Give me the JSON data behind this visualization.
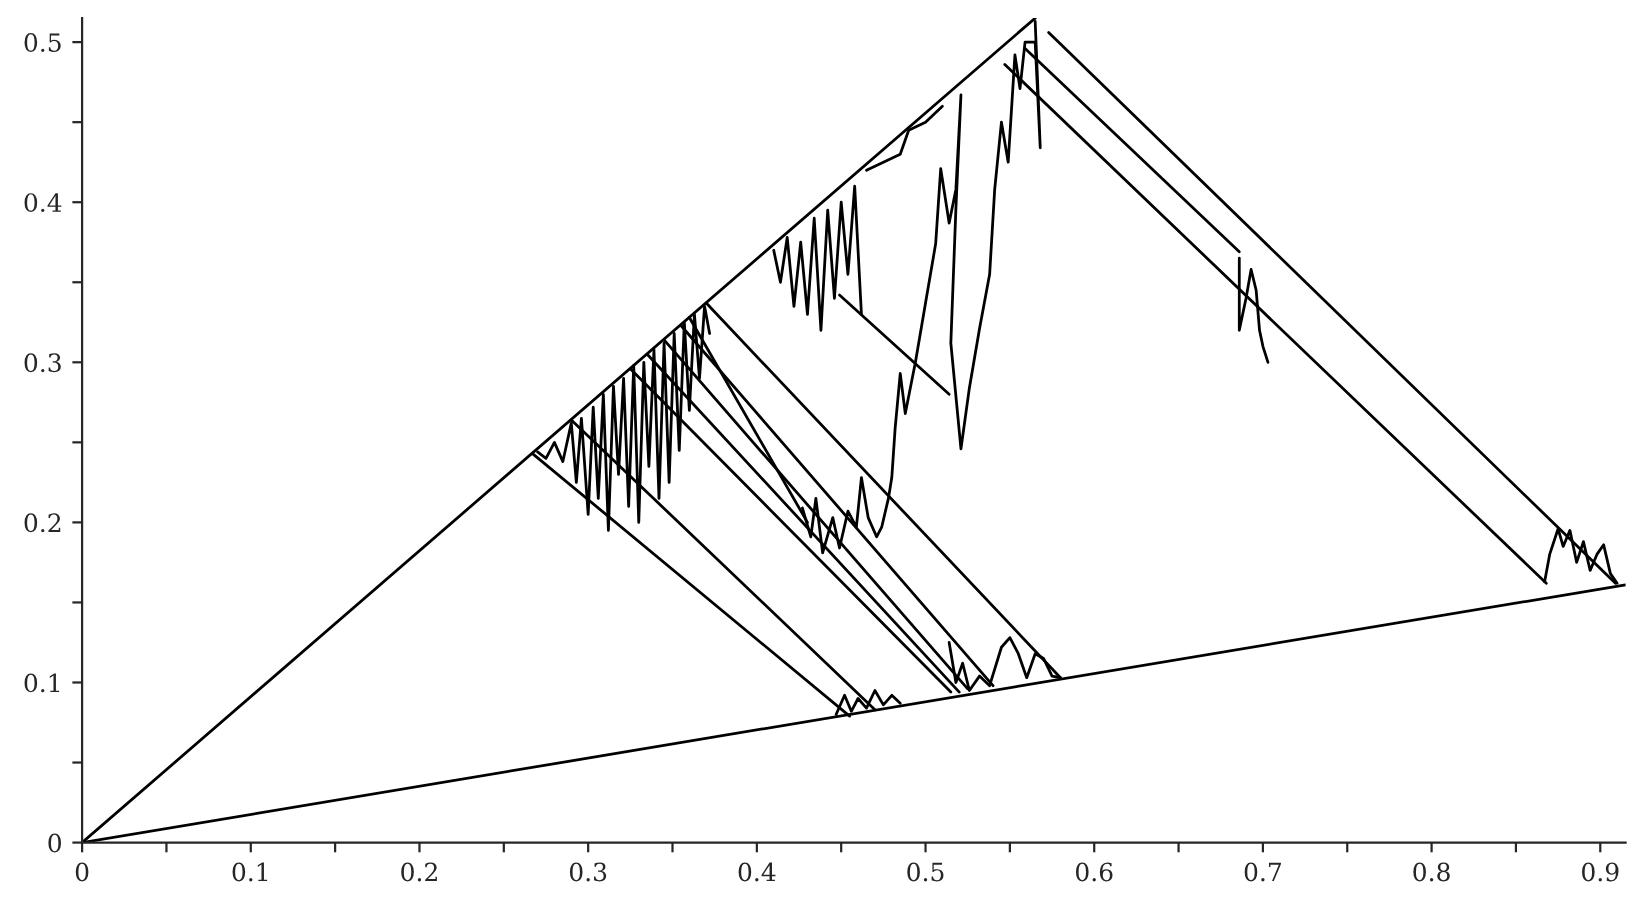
{
  "chart_data": {
    "type": "line",
    "xlim": [
      0,
      0.915
    ],
    "ylim": [
      0,
      0.515
    ],
    "xticks": [
      0,
      {
        "value": 0.05,
        "label": null
      },
      0.1,
      {
        "value": 0.15,
        "label": null
      },
      0.2,
      {
        "value": 0.25,
        "label": null
      },
      0.3,
      {
        "value": 0.35,
        "label": null
      },
      0.4,
      {
        "value": 0.45,
        "label": null
      },
      0.5,
      {
        "value": 0.55,
        "label": null
      },
      0.6,
      {
        "value": 0.65,
        "label": null
      },
      0.7,
      {
        "value": 0.75,
        "label": null
      },
      0.8,
      {
        "value": 0.85,
        "label": null
      },
      0.9
    ],
    "yticks": [
      0,
      {
        "value": 0.05,
        "label": null
      },
      0.1,
      {
        "value": 0.15,
        "label": null
      },
      0.2,
      {
        "value": 0.25,
        "label": null
      },
      0.3,
      {
        "value": 0.35,
        "label": null
      },
      0.4,
      {
        "value": 0.45,
        "label": null
      },
      0.5
    ],
    "grid": false,
    "legend": false,
    "marker": "none",
    "line_style": "solid",
    "series": [
      {
        "color": "#000000",
        "x": [
          0,
          0.565
        ],
        "values": [
          0,
          0.515
        ]
      },
      {
        "color": "#000000",
        "x": [
          0,
          0.915
        ],
        "values": [
          0,
          0.161
        ]
      },
      {
        "color": "#000000",
        "x": [
          0.27,
          0.275,
          0.28,
          0.285,
          0.29,
          0.293,
          0.296,
          0.3,
          0.303,
          0.306,
          0.309,
          0.312,
          0.315,
          0.318,
          0.321,
          0.324,
          0.327,
          0.33,
          0.333,
          0.336,
          0.339,
          0.342,
          0.345,
          0.348,
          0.351,
          0.354,
          0.357,
          0.36,
          0.363,
          0.366,
          0.369,
          0.372
        ],
        "values": [
          0.244,
          0.24,
          0.25,
          0.238,
          0.262,
          0.225,
          0.265,
          0.205,
          0.272,
          0.215,
          0.28,
          0.195,
          0.285,
          0.23,
          0.29,
          0.21,
          0.298,
          0.2,
          0.3,
          0.235,
          0.308,
          0.215,
          0.312,
          0.225,
          0.318,
          0.245,
          0.325,
          0.27,
          0.33,
          0.29,
          0.335,
          0.318
        ]
      },
      {
        "color": "#000000",
        "x": [
          0.41,
          0.414,
          0.418,
          0.422,
          0.426,
          0.43,
          0.434,
          0.438,
          0.442,
          0.446,
          0.45,
          0.454,
          0.458,
          0.462
        ],
        "values": [
          0.37,
          0.35,
          0.378,
          0.335,
          0.375,
          0.33,
          0.39,
          0.32,
          0.395,
          0.34,
          0.4,
          0.355,
          0.41,
          0.33
        ]
      },
      {
        "color": "#000000",
        "x": [
          0.465,
          0.475,
          0.485,
          0.49,
          0.5,
          0.505,
          0.51
        ],
        "values": [
          0.42,
          0.425,
          0.43,
          0.445,
          0.45,
          0.455,
          0.46
        ]
      },
      {
        "color": "#000000",
        "x": [
          0.427,
          0.432,
          0.435,
          0.439,
          0.445,
          0.449,
          0.454,
          0.459,
          0.462,
          0.466,
          0.471,
          0.474,
          0.478,
          0.48,
          0.482,
          0.485,
          0.488,
          0.494,
          0.5,
          0.506,
          0.509,
          0.514,
          0.518,
          0.521,
          0.518,
          0.515,
          0.521,
          0.526,
          0.532,
          0.538,
          0.541,
          0.545,
          0.549,
          0.553,
          0.556,
          0.559,
          0.565,
          0.568,
          0.565
        ],
        "values": [
          0.209,
          0.191,
          0.215,
          0.181,
          0.203,
          0.184,
          0.207,
          0.197,
          0.228,
          0.203,
          0.191,
          0.197,
          0.215,
          0.228,
          0.259,
          0.293,
          0.268,
          0.3,
          0.337,
          0.374,
          0.421,
          0.387,
          0.408,
          0.467,
          0.396,
          0.312,
          0.246,
          0.284,
          0.321,
          0.355,
          0.408,
          0.45,
          0.425,
          0.492,
          0.471,
          0.5,
          0.5,
          0.434,
          0.513
        ]
      },
      {
        "color": "#000000",
        "x": [
          0.447,
          0.452,
          0.456,
          0.46,
          0.465,
          0.47,
          0.475,
          0.48,
          0.485
        ],
        "values": [
          0.08,
          0.092,
          0.082,
          0.09,
          0.084,
          0.095,
          0.086,
          0.092,
          0.087
        ]
      },
      {
        "color": "#000000",
        "x": [
          0.514,
          0.518,
          0.522,
          0.526,
          0.532,
          0.538,
          0.545,
          0.55,
          0.555,
          0.56,
          0.565,
          0.57,
          0.575,
          0.58
        ],
        "values": [
          0.125,
          0.1,
          0.112,
          0.095,
          0.104,
          0.098,
          0.122,
          0.128,
          0.118,
          0.103,
          0.118,
          0.115,
          0.104,
          0.103
        ]
      },
      {
        "color": "#000000",
        "x": [
          0.867,
          0.87,
          0.875,
          0.878,
          0.882,
          0.886,
          0.89,
          0.894,
          0.898,
          0.902,
          0.906,
          0.91
        ],
        "values": [
          0.163,
          0.18,
          0.196,
          0.185,
          0.195,
          0.175,
          0.188,
          0.17,
          0.18,
          0.186,
          0.168,
          0.162
        ]
      },
      {
        "color": "#000000",
        "x": [
          0.686,
          0.686,
          0.69,
          0.693,
          0.696,
          0.698,
          0.7,
          0.703
        ],
        "values": [
          0.365,
          0.32,
          0.34,
          0.358,
          0.345,
          0.32,
          0.31,
          0.3
        ]
      },
      {
        "color": "#000000",
        "x": [
          0.267,
          0.455
        ],
        "values": [
          0.243,
          0.079
        ]
      },
      {
        "color": "#000000",
        "x": [
          0.29,
          0.47
        ],
        "values": [
          0.264,
          0.083
        ]
      },
      {
        "color": "#000000",
        "x": [
          0.325,
          0.515
        ],
        "values": [
          0.296,
          0.094
        ]
      },
      {
        "color": "#000000",
        "x": [
          0.335,
          0.52
        ],
        "values": [
          0.305,
          0.094
        ]
      },
      {
        "color": "#000000",
        "x": [
          0.345,
          0.525
        ],
        "values": [
          0.314,
          0.096
        ]
      },
      {
        "color": "#000000",
        "x": [
          0.355,
          0.54
        ],
        "values": [
          0.323,
          0.098
        ]
      },
      {
        "color": "#000000",
        "x": [
          0.37,
          0.58
        ],
        "values": [
          0.337,
          0.103
        ]
      },
      {
        "color": "#000000",
        "x": [
          0.36,
          0.43
        ],
        "values": [
          0.328,
          0.2
        ]
      },
      {
        "color": "#000000",
        "x": [
          0.449,
          0.514
        ],
        "values": [
          0.342,
          0.28
        ]
      },
      {
        "color": "#000000",
        "x": [
          0.573,
          0.909
        ],
        "values": [
          0.506,
          0.162
        ]
      },
      {
        "color": "#000000",
        "x": [
          0.559,
          0.686
        ],
        "values": [
          0.496,
          0.369
        ]
      },
      {
        "color": "#000000",
        "x": [
          0.547,
          0.868
        ],
        "values": [
          0.486,
          0.162
        ]
      }
    ]
  }
}
